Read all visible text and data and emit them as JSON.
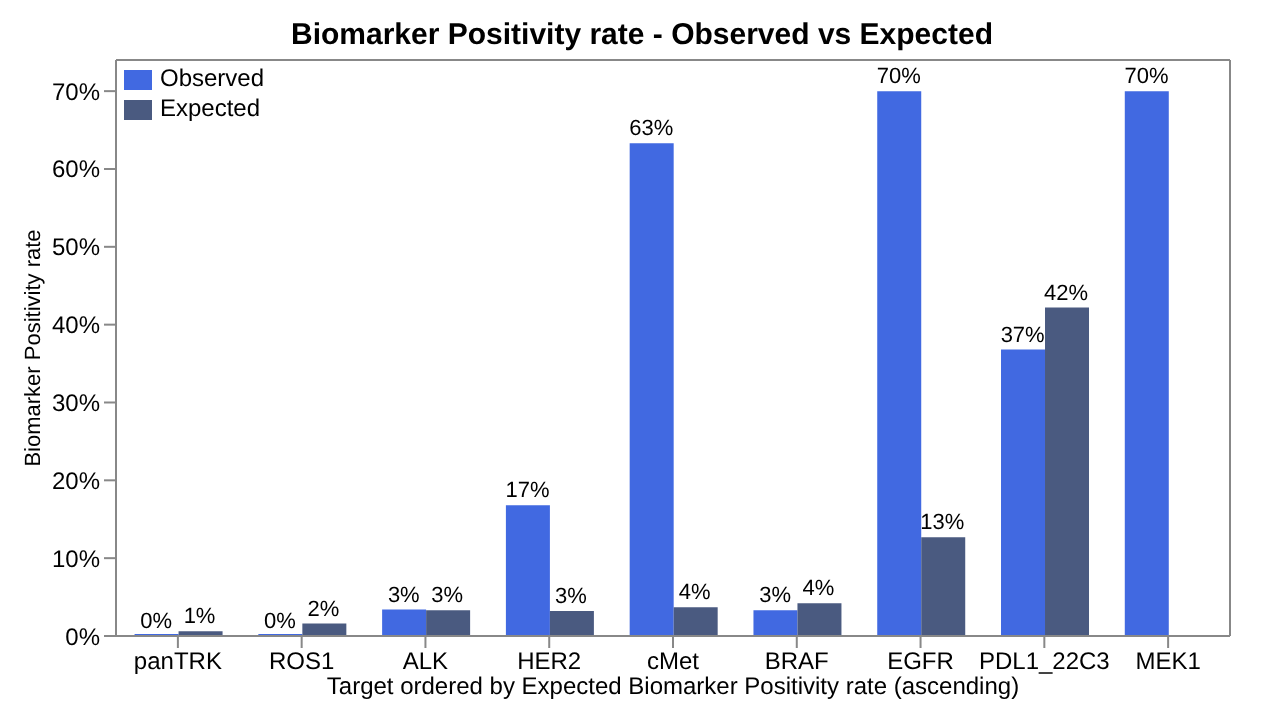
{
  "chart_data": {
    "type": "bar",
    "title": "Biomarker Positivity rate - Observed vs Expected",
    "xlabel": "Target ordered by Expected Biomarker Positivity rate (ascending)",
    "ylabel": "Biomarker Positivity rate",
    "categories": [
      "panTRK",
      "ROS1",
      "ALK",
      "HER2",
      "cMet",
      "BRAF",
      "EGFR",
      "PDL1_22C3",
      "MEK1"
    ],
    "series": [
      {
        "name": "Observed",
        "color": "#4169e1",
        "values": [
          0,
          0,
          3.4,
          16.8,
          63.3,
          3.3,
          70,
          36.8,
          70
        ],
        "value_labels": [
          "0%",
          "0%",
          "3%",
          "17%",
          "63%",
          "3%",
          "70%",
          "37%",
          "70%"
        ]
      },
      {
        "name": "Expected",
        "color": "#4a5a80",
        "values": [
          0.6,
          1.6,
          3.3,
          3.2,
          3.7,
          4.2,
          12.7,
          42.2,
          null
        ],
        "value_labels": [
          "1%",
          "2%",
          "3%",
          "3%",
          "4%",
          "4%",
          "13%",
          "42%",
          null
        ]
      }
    ],
    "ylim": [
      0,
      74
    ],
    "yticks": [
      {
        "value": 0,
        "label": "0%"
      },
      {
        "value": 10,
        "label": "10%"
      },
      {
        "value": 20,
        "label": "20%"
      },
      {
        "value": 30,
        "label": "30%"
      },
      {
        "value": 40,
        "label": "40%"
      },
      {
        "value": 50,
        "label": "50%"
      },
      {
        "value": 60,
        "label": "60%"
      },
      {
        "value": 70,
        "label": "70%"
      }
    ],
    "grid": false,
    "legend": "top left"
  }
}
